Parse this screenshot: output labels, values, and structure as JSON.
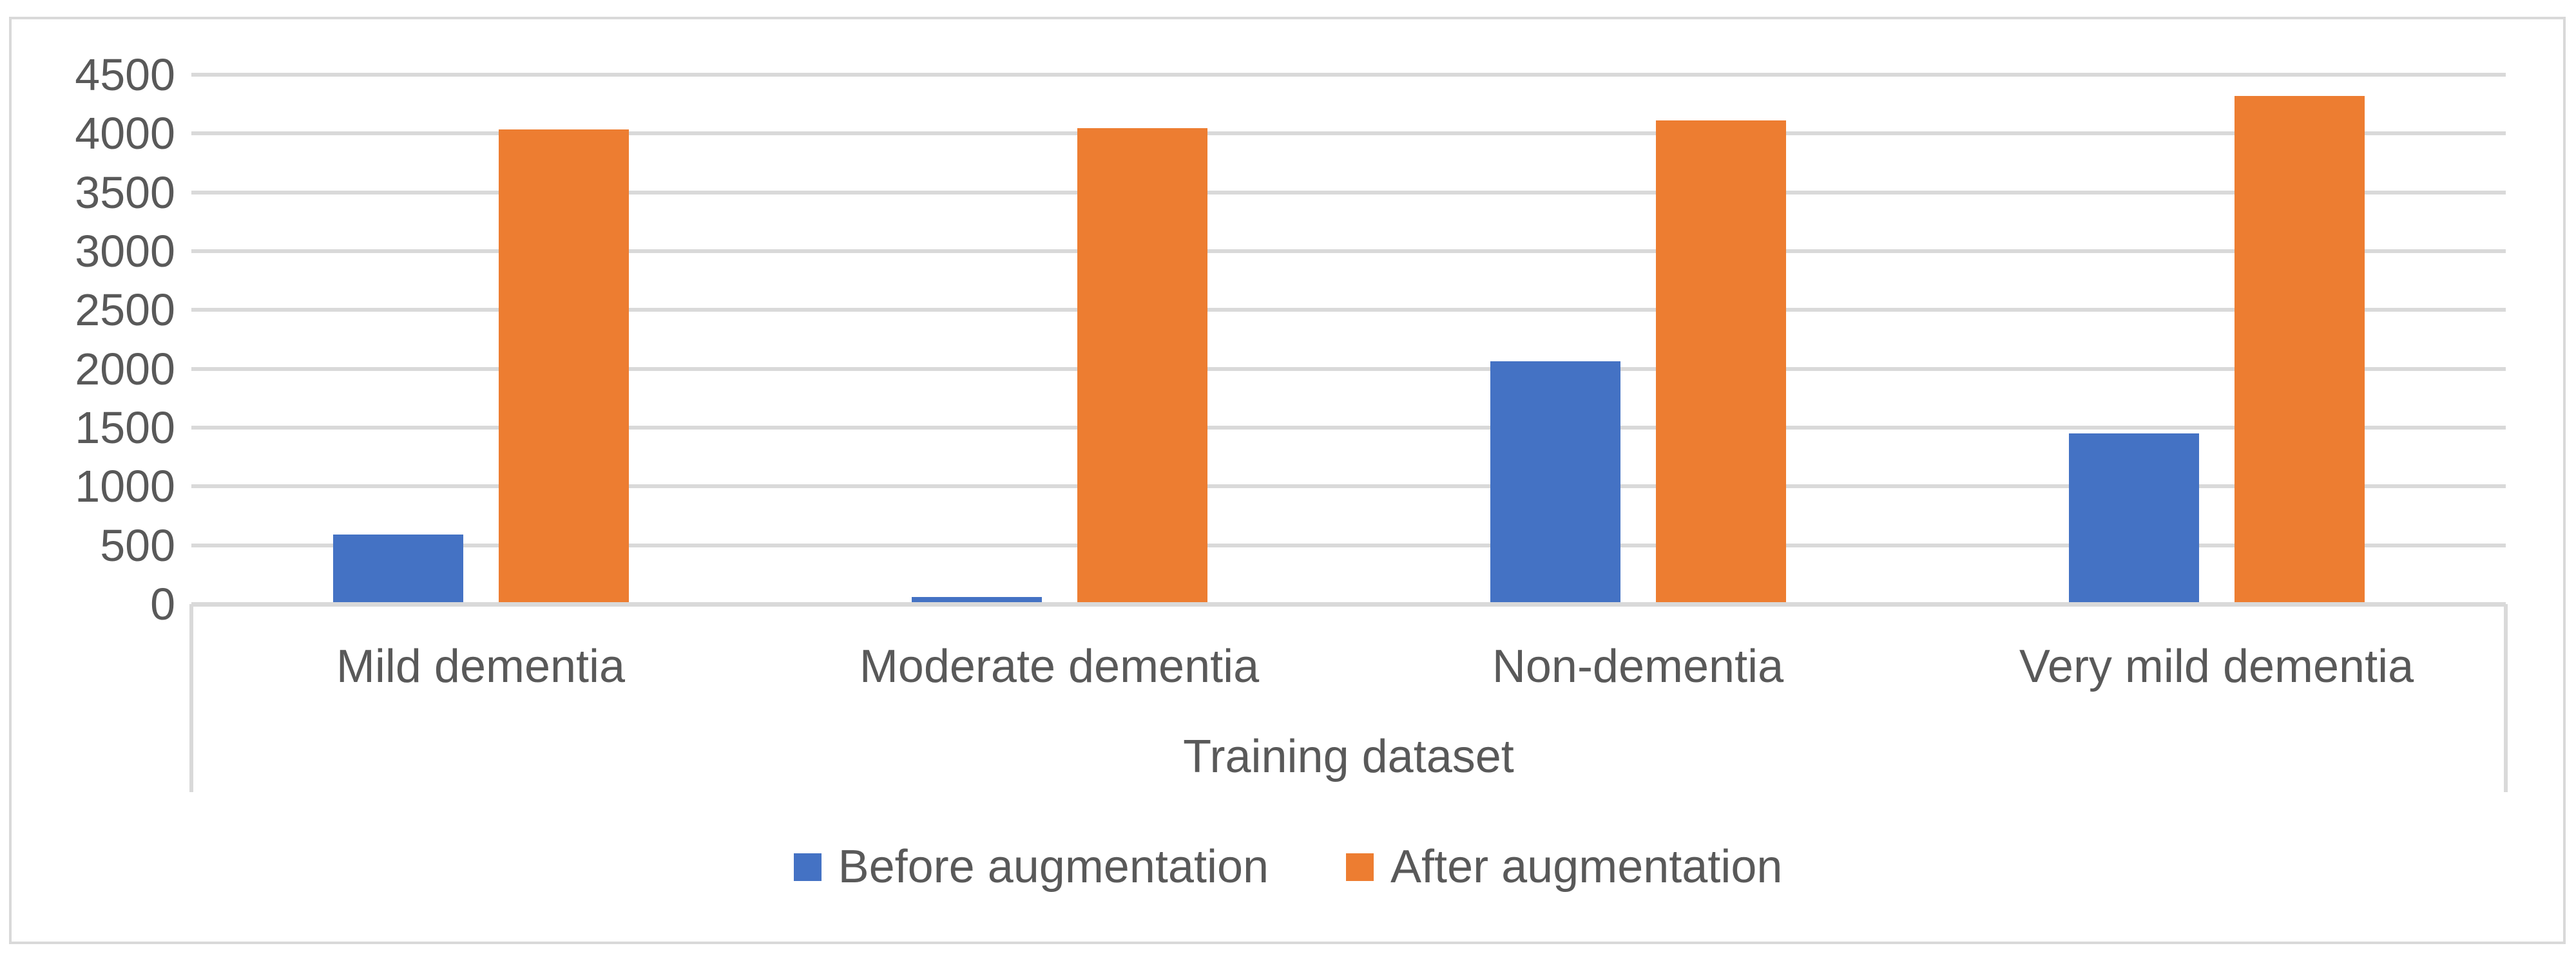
{
  "chart_data": {
    "type": "bar",
    "title": "",
    "xlabel": "Training dataset",
    "ylabel": "",
    "categories": [
      "Mild dementia",
      "Moderate dementia",
      "Non-dementia",
      "Very mild dementia"
    ],
    "series": [
      {
        "name": "Before augmentation",
        "color": "#4472C4",
        "values": [
          574,
          42,
          2048,
          1434
        ]
      },
      {
        "name": "After augmentation",
        "color": "#ED7D31",
        "values": [
          4018,
          4032,
          4096,
          4302
        ]
      }
    ],
    "ylim": [
      0,
      4500
    ],
    "ytick_step": 500,
    "yticks": [
      0,
      500,
      1000,
      1500,
      2000,
      2500,
      3000,
      3500,
      4000,
      4500
    ],
    "grid": "horizontal",
    "legend_position": "bottom",
    "gridline_color": "#D9D9D9",
    "text_color": "#595959",
    "border_color": "#D9D9D9"
  }
}
